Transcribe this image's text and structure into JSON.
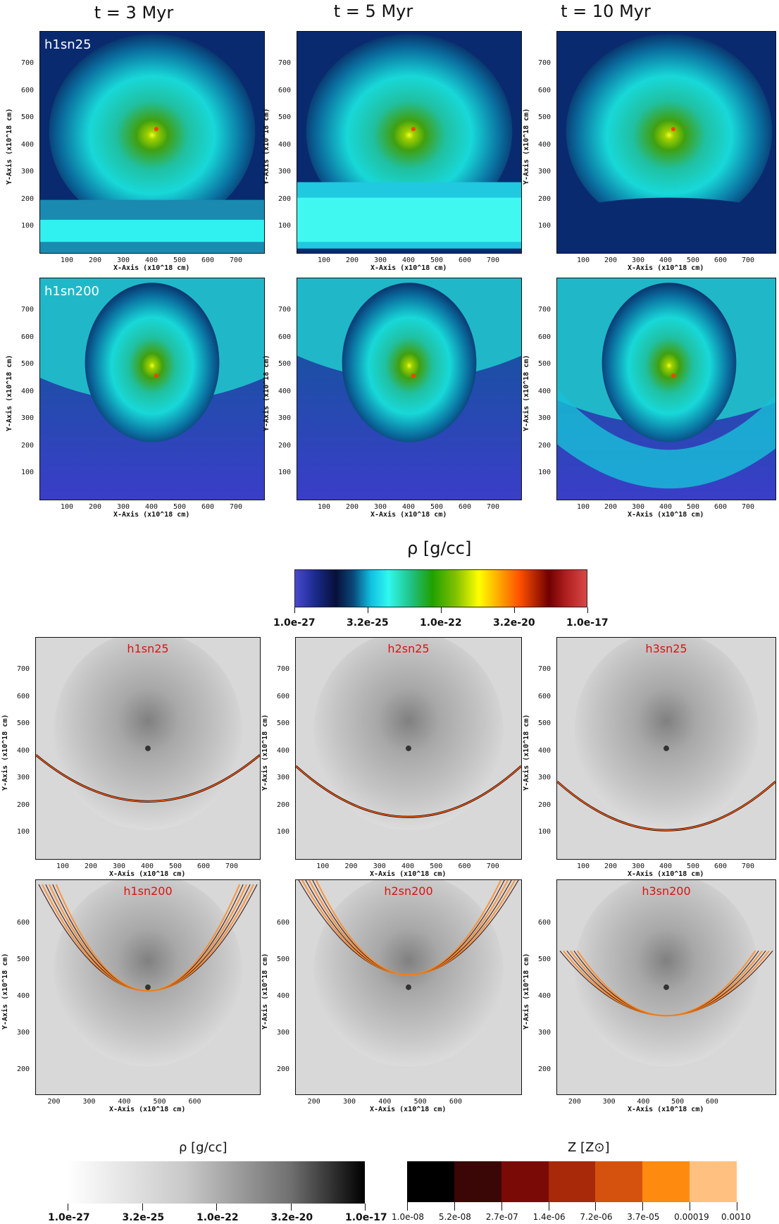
{
  "columns": [
    "t = 3 Myr",
    "t = 5 Myr",
    "t = 10 Myr"
  ],
  "top_panels": [
    {
      "label": "h1sn25"
    },
    {
      "label": ""
    },
    {
      "label": ""
    },
    {
      "label": "h1sn200"
    },
    {
      "label": ""
    },
    {
      "label": ""
    }
  ],
  "bottom_panels": [
    {
      "label": "h1sn25"
    },
    {
      "label": "h2sn25"
    },
    {
      "label": "h3sn25"
    },
    {
      "label": "h1sn200"
    },
    {
      "label": "h2sn200"
    },
    {
      "label": "h3sn200"
    }
  ],
  "axes": {
    "xlabel": "X-Axis (x10^18 cm)",
    "ylabel": "Y-Axis (x10^18 cm)",
    "full_ticks_x": [
      "100",
      "200",
      "300",
      "400",
      "500",
      "600",
      "700"
    ],
    "full_ticks_y": [
      "100",
      "200",
      "300",
      "400",
      "500",
      "600",
      "700"
    ],
    "zoom_ticks_x": [
      "200",
      "300",
      "400",
      "500",
      "600"
    ],
    "zoom_ticks_y": [
      "200",
      "300",
      "400",
      "500",
      "600"
    ]
  },
  "colorbar_density_color": {
    "title": "ρ [g/cc]",
    "ticks": [
      "1.0e-27",
      "3.2e-25",
      "1.0e-22",
      "3.2e-20",
      "1.0e-17"
    ]
  },
  "colorbar_density_gray": {
    "title": "ρ [g/cc]",
    "ticks": [
      "1.0e-27",
      "3.2e-25",
      "1.0e-22",
      "3.2e-20",
      "1.0e-17"
    ]
  },
  "colorbar_metallicity": {
    "title": "Z  [Z⊙]",
    "ticks": [
      "1.0e-08",
      "5.2e-08",
      "2.7e-07",
      "1.4e-06",
      "7.2e-06",
      "3.7e-05",
      "0.00019",
      "0.0010"
    ],
    "colors": [
      "#000000",
      "#3a0606",
      "#7a0a06",
      "#a8280a",
      "#d4520e",
      "#ff8a10",
      "#ffc080"
    ]
  },
  "colors": {
    "deep_blue": "#3838c0",
    "navy": "#0a1a5a",
    "cyan": "#20f0f0",
    "green": "#40a000",
    "yellow": "#ffff00",
    "orange": "#ff6000",
    "dark_red": "#600000",
    "red": "#d04040"
  }
}
